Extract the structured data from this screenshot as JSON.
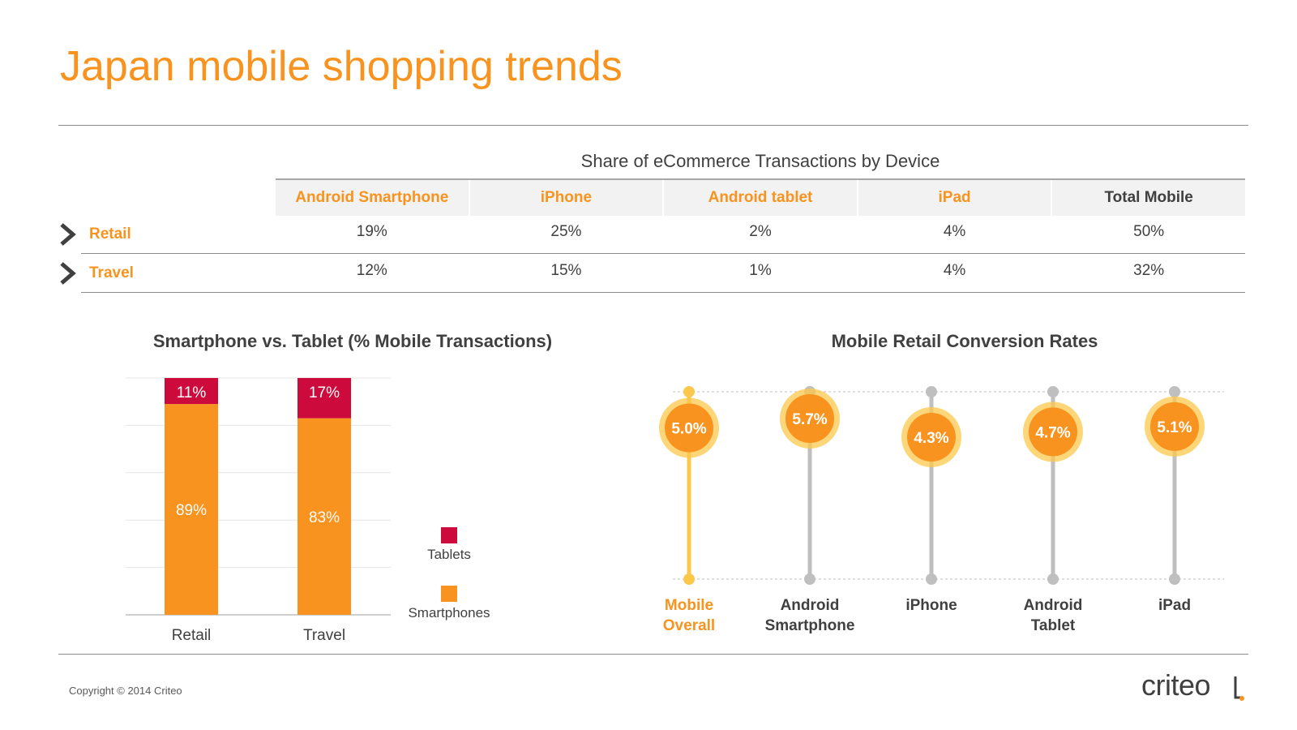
{
  "title": "Japan mobile shopping trends",
  "colors": {
    "orange": "#f7931e",
    "crimson": "#cc0a3c",
    "yellow": "#fbc84b",
    "gray": "#bfbfbf",
    "text": "#404040"
  },
  "table": {
    "title": "Share of eCommerce Transactions by Device",
    "headers": [
      {
        "label": "Android Smartphone",
        "color": "#f7931e"
      },
      {
        "label": "iPhone",
        "color": "#f7931e"
      },
      {
        "label": "Android tablet",
        "color": "#f7931e"
      },
      {
        "label": "iPad",
        "color": "#f7931e"
      },
      {
        "label": "Total Mobile",
        "color": "#404040"
      }
    ],
    "rows": [
      {
        "label": "Retail",
        "values": [
          "19%",
          "25%",
          "2%",
          "4%",
          "50%"
        ]
      },
      {
        "label": "Travel",
        "values": [
          "12%",
          "15%",
          "1%",
          "4%",
          "32%"
        ]
      }
    ]
  },
  "chart_data": [
    {
      "type": "bar",
      "stacked": true,
      "title": "Smartphone vs. Tablet (% Mobile Transactions)",
      "categories": [
        "Retail",
        "Travel"
      ],
      "series": [
        {
          "name": "Smartphones",
          "values": [
            89,
            83
          ],
          "labels": [
            "89%",
            "83%"
          ],
          "color": "#f7931e"
        },
        {
          "name": "Tablets",
          "values": [
            11,
            17
          ],
          "labels": [
            "11%",
            "17%"
          ],
          "color": "#cc0a3c"
        }
      ],
      "ylim": [
        0,
        100
      ],
      "grid": true,
      "legend": "right"
    },
    {
      "type": "scatter",
      "title": "Mobile Retail Conversion Rates",
      "categories": [
        "Mobile Overall",
        "Android Smartphone",
        "iPhone",
        "Android Tablet",
        "iPad"
      ],
      "category_lines": [
        [
          "Mobile",
          "Overall"
        ],
        [
          "Android",
          "Smartphone"
        ],
        [
          "iPhone"
        ],
        [
          "Android",
          "Tablet"
        ],
        [
          "iPad"
        ]
      ],
      "values": [
        5.0,
        5.7,
        4.3,
        4.7,
        5.1
      ],
      "labels": [
        "5.0%",
        "5.7%",
        "4.3%",
        "4.7%",
        "5.1%"
      ],
      "highlight": "Mobile Overall"
    }
  ],
  "footer": {
    "copyright": "Copyright © 2014 Criteo",
    "logo": "criteo"
  }
}
